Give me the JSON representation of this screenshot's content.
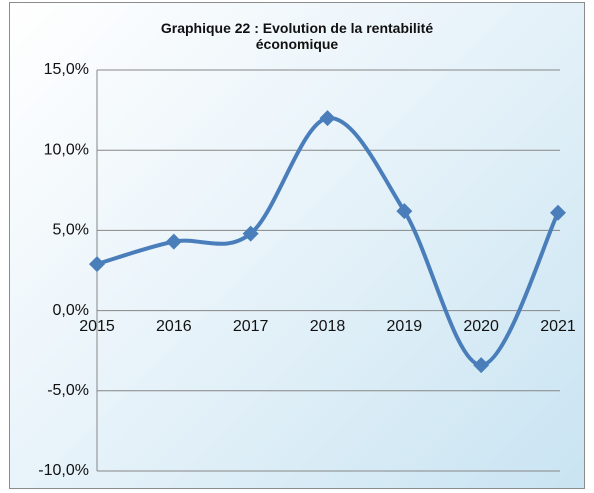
{
  "chart_data": {
    "type": "line",
    "title": "Graphique 22 : Evolution de la rentabilité économique",
    "categories": [
      "2015",
      "2016",
      "2017",
      "2018",
      "2019",
      "2020",
      "2021"
    ],
    "series": [
      {
        "name": "Rentabilité économique",
        "color": "#4a7ebb",
        "values": [
          2.9,
          4.3,
          4.8,
          12.0,
          6.2,
          -3.4,
          6.1
        ]
      }
    ],
    "ylim": [
      -10,
      15
    ],
    "yticks": [
      {
        "value": -10,
        "label": "-10,0%"
      },
      {
        "value": -5,
        "label": "-5,0%"
      },
      {
        "value": 0,
        "label": "0,0%"
      },
      {
        "value": 5,
        "label": "5,0%"
      },
      {
        "value": 10,
        "label": "10,0%"
      },
      {
        "value": 15,
        "label": "15,0%"
      }
    ],
    "grid": true,
    "smooth": true
  }
}
